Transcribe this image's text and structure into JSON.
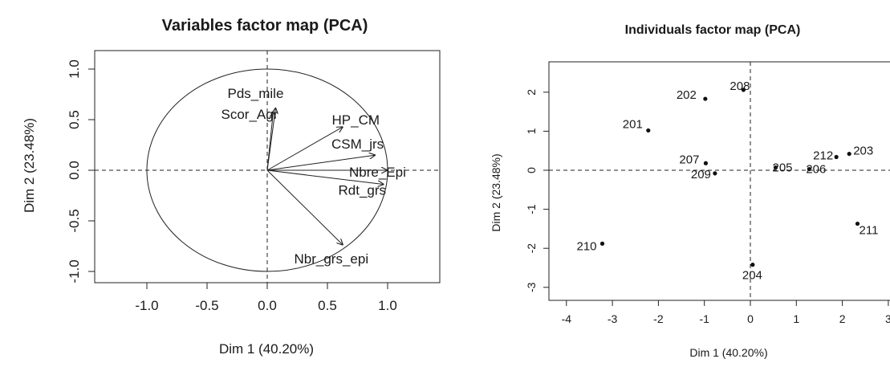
{
  "chart_data": [
    {
      "type": "scatter",
      "subtype": "pca-variables-correlation-circle",
      "title": "Variables factor map (PCA)",
      "xlabel": "Dim 1 (40.20%)",
      "ylabel": "Dim 2 (23.48%)",
      "xlim": [
        -1.5,
        1.5
      ],
      "ylim": [
        -1.1,
        1.1
      ],
      "xticks": [
        -1.0,
        -0.5,
        0.0,
        0.5,
        1.0
      ],
      "xtick_labels": [
        "-1.0",
        "-0.5",
        "0.0",
        "0.5",
        "1.0"
      ],
      "yticks": [
        -1.0,
        -0.5,
        0.0,
        0.5,
        1.0
      ],
      "ytick_labels": [
        "-1.0",
        "-0.5",
        "0.0",
        "0.5",
        "1.0"
      ],
      "unit_circle": true,
      "reference_lines": [
        0,
        0
      ],
      "vectors": [
        {
          "name": "Pds_mile",
          "x": 0.07,
          "y": 0.62
        },
        {
          "name": "Scor_Agr",
          "x": 0.05,
          "y": 0.58
        },
        {
          "name": "HP_CM",
          "x": 0.63,
          "y": 0.43
        },
        {
          "name": "CSM_jrs",
          "x": 0.9,
          "y": 0.15
        },
        {
          "name": "Nbre_Epi",
          "x": 1.0,
          "y": 0.0
        },
        {
          "name": "Rdt_grs",
          "x": 0.97,
          "y": -0.14
        },
        {
          "name": "Nbr_grs_epi",
          "x": 0.63,
          "y": -0.74
        }
      ]
    },
    {
      "type": "scatter",
      "subtype": "pca-individuals-map",
      "title": "Individuals factor map (PCA)",
      "xlabel": "Dim 1 (40.20%)",
      "ylabel": "Dim 2 (23.48%)",
      "xlim": [
        -4.1,
        3.1
      ],
      "ylim": [
        -3.35,
        2.55
      ],
      "xticks": [
        -4,
        -3,
        -2,
        -1,
        0,
        1,
        2,
        3
      ],
      "xtick_labels": [
        "-4",
        "-3",
        "-2",
        "-1",
        "0",
        "1",
        "2",
        "3"
      ],
      "yticks": [
        -3,
        -2,
        -1,
        0,
        1,
        2
      ],
      "ytick_labels": [
        "-3",
        "-2",
        "-1",
        "0",
        "1",
        "2"
      ],
      "reference_lines": [
        0,
        0
      ],
      "points": [
        {
          "label": "201",
          "x": -2.22,
          "y": 1.02
        },
        {
          "label": "202",
          "x": -0.98,
          "y": 1.83
        },
        {
          "label": "203",
          "x": 2.15,
          "y": 0.42
        },
        {
          "label": "204",
          "x": 0.05,
          "y": -2.42
        },
        {
          "label": "205",
          "x": 0.55,
          "y": 0.07
        },
        {
          "label": "206",
          "x": 1.28,
          "y": 0.03
        },
        {
          "label": "207",
          "x": -0.97,
          "y": 0.18
        },
        {
          "label": "208",
          "x": -0.15,
          "y": 2.06
        },
        {
          "label": "209",
          "x": -0.77,
          "y": -0.08
        },
        {
          "label": "210",
          "x": -3.22,
          "y": -1.88
        },
        {
          "label": "211",
          "x": 2.33,
          "y": -1.37
        },
        {
          "label": "212",
          "x": 1.87,
          "y": 0.34
        }
      ]
    }
  ]
}
